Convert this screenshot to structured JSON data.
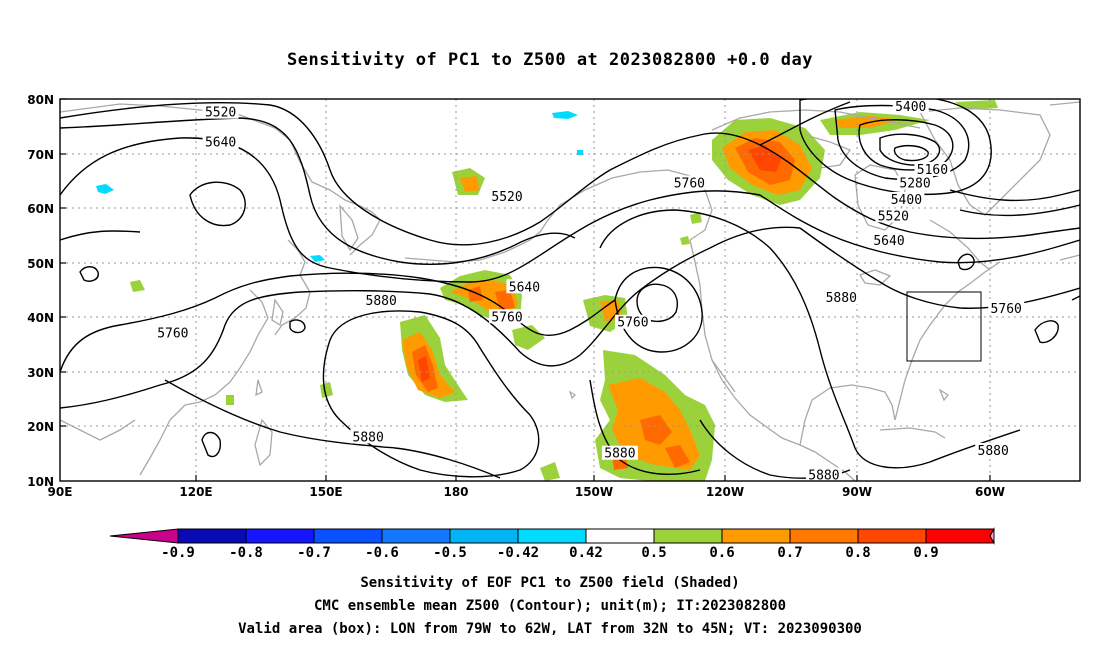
{
  "title": "Sensitivity of PC1 to Z500 at 2023082800 +0.0 day",
  "map": {
    "lat_ticks": [
      "80N",
      "70N",
      "60N",
      "50N",
      "40N",
      "30N",
      "20N",
      "10N"
    ],
    "lon_ticks": [
      "90E",
      "120E",
      "150E",
      "180",
      "150W",
      "120W",
      "90W",
      "60W"
    ],
    "extent": {
      "lon_min": 90,
      "lon_max": 325,
      "lat_min": 10,
      "lat_max": 80
    },
    "contour_labels": [
      {
        "text": "5520",
        "lon": 127,
        "lat": 77.5
      },
      {
        "text": "5640",
        "lon": 127,
        "lat": 72
      },
      {
        "text": "5520",
        "lon": 193,
        "lat": 62
      },
      {
        "text": "5640",
        "lon": 197,
        "lat": 45.5
      },
      {
        "text": "5880",
        "lon": 164,
        "lat": 43
      },
      {
        "text": "5760",
        "lon": 193,
        "lat": 40
      },
      {
        "text": "5760",
        "lon": 116,
        "lat": 37
      },
      {
        "text": "5760",
        "lon": 222,
        "lat": 39
      },
      {
        "text": "5760",
        "lon": 235,
        "lat": 64.5
      },
      {
        "text": "5880",
        "lon": 161,
        "lat": 18
      },
      {
        "text": "5880",
        "lon": 270,
        "lat": 43.5
      },
      {
        "text": "5880",
        "lon": 219,
        "lat": 15
      },
      {
        "text": "5880",
        "lon": 266,
        "lat": 11
      },
      {
        "text": "5880",
        "lon": 305,
        "lat": 15.5
      },
      {
        "text": "5400",
        "lon": 286,
        "lat": 78.5
      },
      {
        "text": "5160",
        "lon": 291,
        "lat": 67
      },
      {
        "text": "5280",
        "lon": 287,
        "lat": 64.5
      },
      {
        "text": "5400",
        "lon": 285,
        "lat": 61.5
      },
      {
        "text": "5520",
        "lon": 282,
        "lat": 58.5
      },
      {
        "text": "5640",
        "lon": 281,
        "lat": 54
      },
      {
        "text": "5760",
        "lon": 308,
        "lat": 41.5
      }
    ],
    "valid_box": {
      "lon_from": 281,
      "lon_to": 298,
      "lat_from": 32,
      "lat_to": 45
    }
  },
  "colorbar": {
    "labels": [
      "-0.9",
      "-0.8",
      "-0.7",
      "-0.6",
      "-0.5",
      "-0.42",
      "0.42",
      "0.5",
      "0.6",
      "0.7",
      "0.8",
      "0.9"
    ],
    "colors": [
      "#c8008c",
      "#0a0ab4",
      "#1414ff",
      "#0a50ff",
      "#1478ff",
      "#00b4f5",
      "#00dcff",
      "#ffffff",
      "#9bd23c",
      "#ff9b00",
      "#ff7800",
      "#ff4600",
      "#ff0000",
      "#ff9bcd"
    ]
  },
  "footer": {
    "line1": "Sensitivity of EOF PC1 to Z500 field (Shaded)",
    "line2": "CMC ensemble mean Z500 (Contour); unit(m); IT:2023082800",
    "line3": "Valid area (box): LON from 79W to 62W, LAT from 32N to 45N; VT: 2023090300"
  }
}
